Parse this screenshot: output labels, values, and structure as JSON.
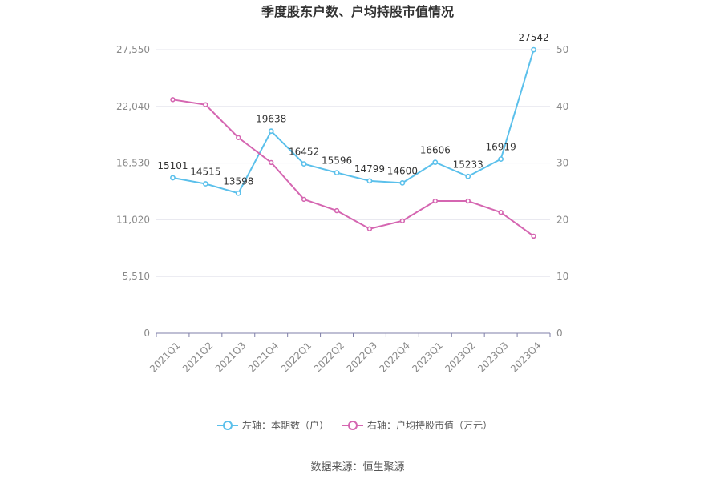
{
  "title": "季度股东户数、户均持股市值情况",
  "source": "数据来源：恒生聚源",
  "colors": {
    "left_series": "#5bc0eb",
    "right_series": "#d566b1",
    "grid": "#e6e6ee",
    "axis": "#7f7fa8"
  },
  "chart_data": {
    "type": "line",
    "categories": [
      "2021Q1",
      "2021Q2",
      "2021Q3",
      "2021Q4",
      "2022Q1",
      "2022Q2",
      "2022Q3",
      "2022Q4",
      "2023Q1",
      "2023Q2",
      "2023Q3",
      "2023Q4"
    ],
    "left_axis": {
      "ticks": [
        "0",
        "5,510",
        "11,020",
        "16,530",
        "22,040",
        "27,550"
      ],
      "range": [
        0,
        27550
      ]
    },
    "right_axis": {
      "ticks": [
        "0",
        "10",
        "20",
        "30",
        "40",
        "50"
      ],
      "range": [
        0,
        50
      ]
    },
    "series": [
      {
        "name": "左轴：本期数（户）",
        "axis": "left",
        "values": [
          15101,
          14515,
          13598,
          19638,
          16452,
          15596,
          14799,
          14600,
          16606,
          15233,
          16919,
          27542
        ],
        "labels": [
          "15101",
          "14515",
          "13598",
          "19638",
          "16452",
          "15596",
          "14799",
          "14600",
          "16606",
          "15233",
          "16919",
          "27542"
        ]
      },
      {
        "name": "右轴：户均持股市值（万元）",
        "axis": "right",
        "values": [
          41.2,
          40.3,
          34.5,
          30.1,
          23.6,
          21.6,
          18.4,
          19.8,
          23.3,
          23.3,
          21.3,
          17.1
        ]
      }
    ],
    "legend_position": "bottom",
    "grid": true
  }
}
